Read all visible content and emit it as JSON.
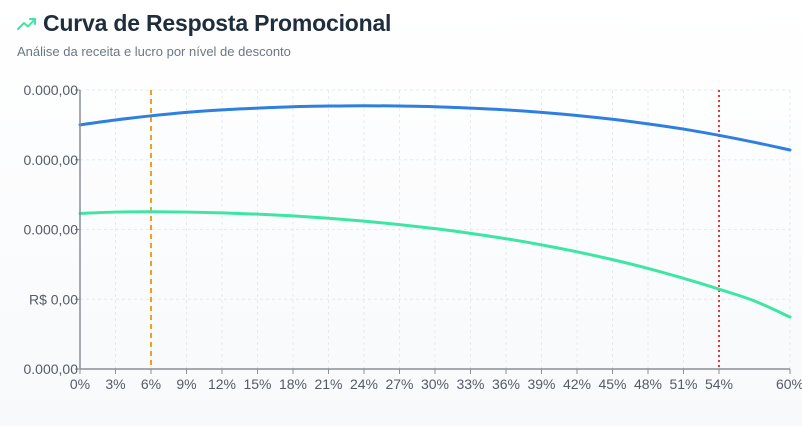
{
  "header": {
    "title": "Curva de Resposta Promocional",
    "subtitle": "Análise da receita e lucro por nível de desconto",
    "icon": "trending-up-icon"
  },
  "colors": {
    "revenue": "#2f7fe0",
    "profit": "#3ee6a3",
    "optimal_line": "#f0a020",
    "limit_line": "#e03b3b",
    "axis": "#8a8f95",
    "grid": "#e6ebf0",
    "tick_text": "#555c66"
  },
  "chart_data": {
    "type": "line",
    "title": "Curva de Resposta Promocional",
    "subtitle": "Análise da receita e lucro por nível de desconto",
    "xlabel": "",
    "ylabel": "",
    "x_ticks": [
      "0%",
      "3%",
      "6%",
      "9%",
      "12%",
      "15%",
      "18%",
      "21%",
      "24%",
      "27%",
      "30%",
      "33%",
      "36%",
      "39%",
      "42%",
      "45%",
      "48%",
      "51%",
      "54%",
      "60%"
    ],
    "y_ticks": [
      "0.000,00",
      "0.000,00",
      "0.000,00",
      "R$ 0,00",
      "0.000,00"
    ],
    "xlim": [
      0,
      60
    ],
    "ylim": [
      -10000,
      30000
    ],
    "grid": true,
    "x": [
      0,
      3,
      6,
      9,
      12,
      15,
      18,
      21,
      24,
      27,
      30,
      33,
      36,
      39,
      42,
      45,
      48,
      51,
      54,
      57,
      60
    ],
    "series": [
      {
        "key": "revenue",
        "values": [
          25000,
          25700,
          26300,
          26800,
          27150,
          27400,
          27600,
          27700,
          27750,
          27700,
          27600,
          27400,
          27150,
          26800,
          26350,
          25800,
          25150,
          24400,
          23500,
          22500,
          21400
        ]
      },
      {
        "key": "profit",
        "values": [
          12300,
          12500,
          12550,
          12500,
          12380,
          12200,
          11950,
          11620,
          11200,
          10700,
          10120,
          9450,
          8680,
          7800,
          6800,
          5680,
          4420,
          3000,
          1450,
          -250,
          -2550
        ]
      }
    ],
    "reference_lines": [
      {
        "key": "optimal",
        "x": 6,
        "style": "dashed"
      },
      {
        "key": "limit",
        "x": 54,
        "style": "dotted"
      }
    ]
  }
}
